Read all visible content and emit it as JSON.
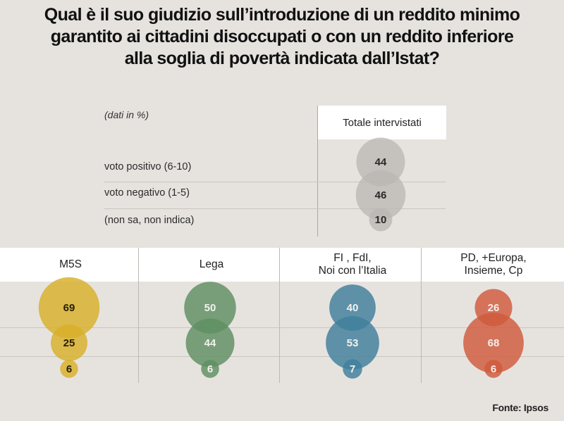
{
  "title_lines": [
    "Qual è il suo giudizio sull’introduzione di un reddito minimo",
    "garantito ai cittadini disoccupati o con un reddito inferiore",
    "alla soglia di povertà indicata dall’Istat?"
  ],
  "units_note": "(dati in %)",
  "source": "Fonte: Ipsos",
  "chart_data": {
    "type": "bubble-table",
    "title": "Qual è il suo giudizio sull’introduzione di un reddito minimo garantito ai cittadini disoccupati o con un reddito inferiore alla soglia di povertà indicata dall’Istat?",
    "unit": "%",
    "rows": [
      "voto positivo (6-10)",
      "voto negativo (1-5)",
      "(non sa, non indica)"
    ],
    "total": {
      "name": "Totale intervistati",
      "values": [
        44,
        46,
        10
      ],
      "color": "#b9b6b2"
    },
    "series": [
      {
        "name": "M5S",
        "lines": [
          "M5S"
        ],
        "values": [
          69,
          25,
          6
        ],
        "color": "#d8b02a",
        "text_color": "#2a2006"
      },
      {
        "name": "Lega",
        "lines": [
          "Lega"
        ],
        "values": [
          50,
          44,
          6
        ],
        "color": "#5e8f61",
        "text_color": "#f2f2ee"
      },
      {
        "name": "FI, FdI, Noi con l’Italia",
        "lines": [
          "FI , FdI,",
          "Noi con l’Italia"
        ],
        "values": [
          40,
          53,
          7
        ],
        "color": "#3f7f9c",
        "text_color": "#f2f2ee"
      },
      {
        "name": "PD, +Europa, Insieme, Cp",
        "lines": [
          "PD, +Europa,",
          "Insieme, Cp"
        ],
        "values": [
          26,
          68,
          6
        ],
        "color": "#cf5a3d",
        "text_color": "#f7efe9"
      }
    ],
    "legend": "none",
    "source": "Fonte: Ipsos"
  }
}
